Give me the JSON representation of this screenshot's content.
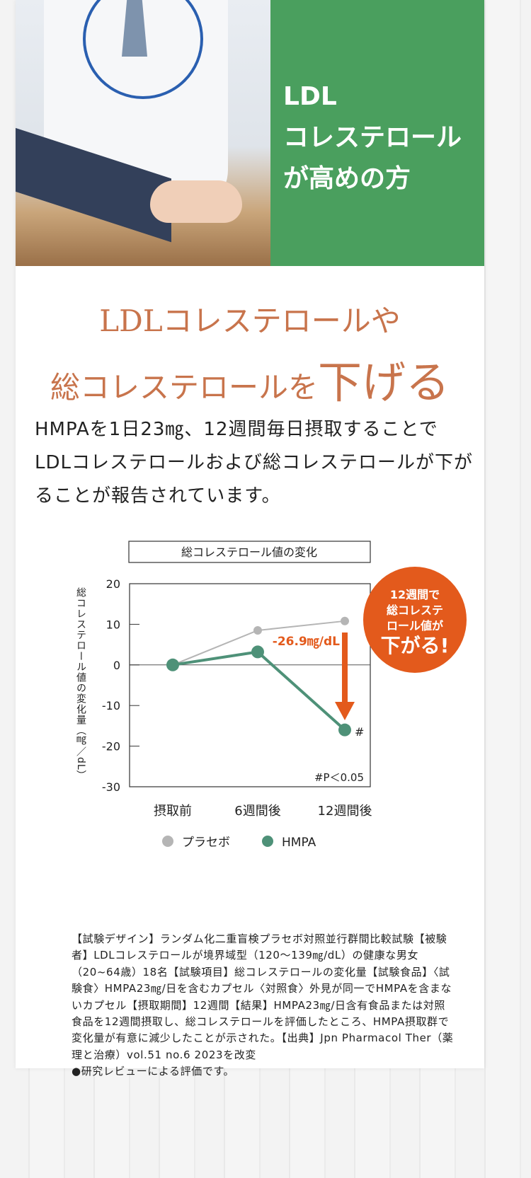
{
  "hero": {
    "lines": [
      "LDL",
      "コレステロール",
      "が高めの方"
    ]
  },
  "headline": {
    "line1": "LDLコレステロールや",
    "line2_prefix": "総コレステロールを",
    "line2_emphasis": "下げる"
  },
  "body": "HMPAを1日23㎎、12週間毎日摂取することでLDLコレステロールおよび総コレステロールが下がることが報告されています。",
  "colors": {
    "green": "#4a9f5e",
    "heading": "#c8744c",
    "placebo": "#b5b5b5",
    "hmpa": "#4e9178",
    "accent": "#e35a1c"
  },
  "chart_data": {
    "type": "line",
    "title": "総コレステロール値の変化",
    "ylabel": "総コレステロール値の変化量（㎎／dL）",
    "categories": [
      "摂取前",
      "6週間後",
      "12週間後"
    ],
    "ylim": [
      -30,
      20
    ],
    "yticks": [
      20,
      10,
      0,
      -10,
      -20,
      -30
    ],
    "grid": false,
    "legend": "bottom",
    "series": [
      {
        "name": "プラセボ",
        "values": [
          0,
          8.5,
          10.8
        ],
        "color": "#b5b5b5"
      },
      {
        "name": "HMPA",
        "values": [
          0,
          3.2,
          -16.0
        ],
        "color": "#4e9178"
      }
    ],
    "annotations": {
      "diff": "-26.9㎎/dL",
      "sig_mark": "#",
      "sig_note": "#P＜0.05",
      "badge_lines": [
        "12週間で",
        "総コレステ",
        "ロール値が",
        "下がる!"
      ]
    }
  },
  "note": "【試験デザイン】ランダム化二重盲検プラセボ対照並行群間比較試験【被験者】LDLコレステロールが境界域型（120～139㎎/dL）の健康な男女（20~64歳）18名【試験項目】総コレステロールの変化量【試験食品】〈試験食〉HMPA23㎎/日を含むカプセル〈対照食〉外見が同一でHMPAを含まないカプセル【摂取期間】12週間【結果】HMPA23㎎/日含有食品または対照食品を12週間摂取し、総コレステロールを評価したところ、HMPA摂取群で変化量が有意に減少したことが示された。【出典】Jpn Pharmacol Ther（薬理と治療）vol.51 no.6 2023を改変",
  "note2": "●研究レビューによる評価です。"
}
